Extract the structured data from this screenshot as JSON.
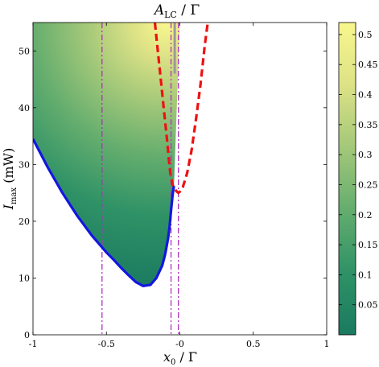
{
  "chart_data": {
    "type": "heatmap",
    "title": "A_LC / Γ",
    "title_main": "A",
    "title_sub": "LC",
    "title_rest": " / Γ",
    "xlabel": "x₀ / Γ",
    "xlabel_main": "x",
    "xlabel_sub": "0",
    "xlabel_rest": " / Γ",
    "ylabel": "I_max (mW)",
    "ylabel_main": "I",
    "ylabel_sub": "max",
    "ylabel_rest": "  (mW)",
    "xlim": [
      -1,
      1
    ],
    "ylim": [
      0,
      55
    ],
    "xticks": [
      -1,
      -0.5,
      0,
      0.5,
      1
    ],
    "xtick_labels": [
      "-1",
      "-0.5",
      "-0",
      "0.5",
      "1"
    ],
    "yticks": [
      0,
      10,
      20,
      30,
      40,
      50
    ],
    "ytick_labels": [
      "0",
      "10",
      "20",
      "30",
      "40",
      "50"
    ],
    "colorbar": {
      "range": [
        0,
        0.52
      ],
      "ticks": [
        0.05,
        0.1,
        0.15,
        0.2,
        0.25,
        0.3,
        0.35,
        0.4,
        0.45,
        0.5
      ],
      "tick_labels": [
        "0.05",
        "0.1",
        "0.15",
        "0.2",
        "0.25",
        "0.3",
        "0.35",
        "0.4",
        "0.45",
        "0.5"
      ],
      "colors": [
        "#1a7a60",
        "#2f9266",
        "#64ad6e",
        "#a3c879",
        "#dde286",
        "#f8f78e"
      ]
    },
    "boundary_blue": {
      "color": "#1515e0",
      "x": [
        -1,
        -0.9,
        -0.8,
        -0.7,
        -0.6,
        -0.5,
        -0.45,
        -0.4,
        -0.35,
        -0.3,
        -0.25,
        -0.2,
        -0.16,
        -0.12,
        -0.1,
        -0.08,
        -0.07,
        -0.06,
        -0.055,
        -0.05,
        -0.045,
        -0.04
      ],
      "y": [
        34.5,
        29.5,
        25.0,
        21.0,
        17.5,
        14.5,
        13.2,
        11.8,
        10.5,
        9.3,
        8.6,
        8.8,
        10.0,
        12.2,
        14.2,
        17.0,
        19.0,
        21.8,
        23.2,
        24.5,
        25.5,
        26.2
      ]
    },
    "boundary_red": {
      "color": "#ee1111",
      "x": [
        -0.17,
        -0.15,
        -0.13,
        -0.11,
        -0.09,
        -0.075,
        -0.065,
        -0.06,
        -0.05,
        -0.04,
        -0.03,
        -0.02,
        -0.01,
        0.0,
        0.02,
        0.05,
        0.08,
        0.11,
        0.14,
        0.17,
        0.19
      ],
      "y": [
        55,
        50,
        45,
        40,
        35,
        31,
        28.5,
        27.8,
        26.5,
        25.8,
        25.5,
        25.2,
        25.0,
        25.2,
        26.0,
        28.5,
        32.5,
        38.0,
        44.0,
        51.0,
        55.0
      ]
    },
    "vertical_lines": {
      "color": "#b030c0",
      "x": [
        -0.53,
        -0.06,
        -0.01
      ]
    },
    "grey_marker": {
      "x": -0.035,
      "y_range": [
        46,
        55
      ]
    }
  }
}
